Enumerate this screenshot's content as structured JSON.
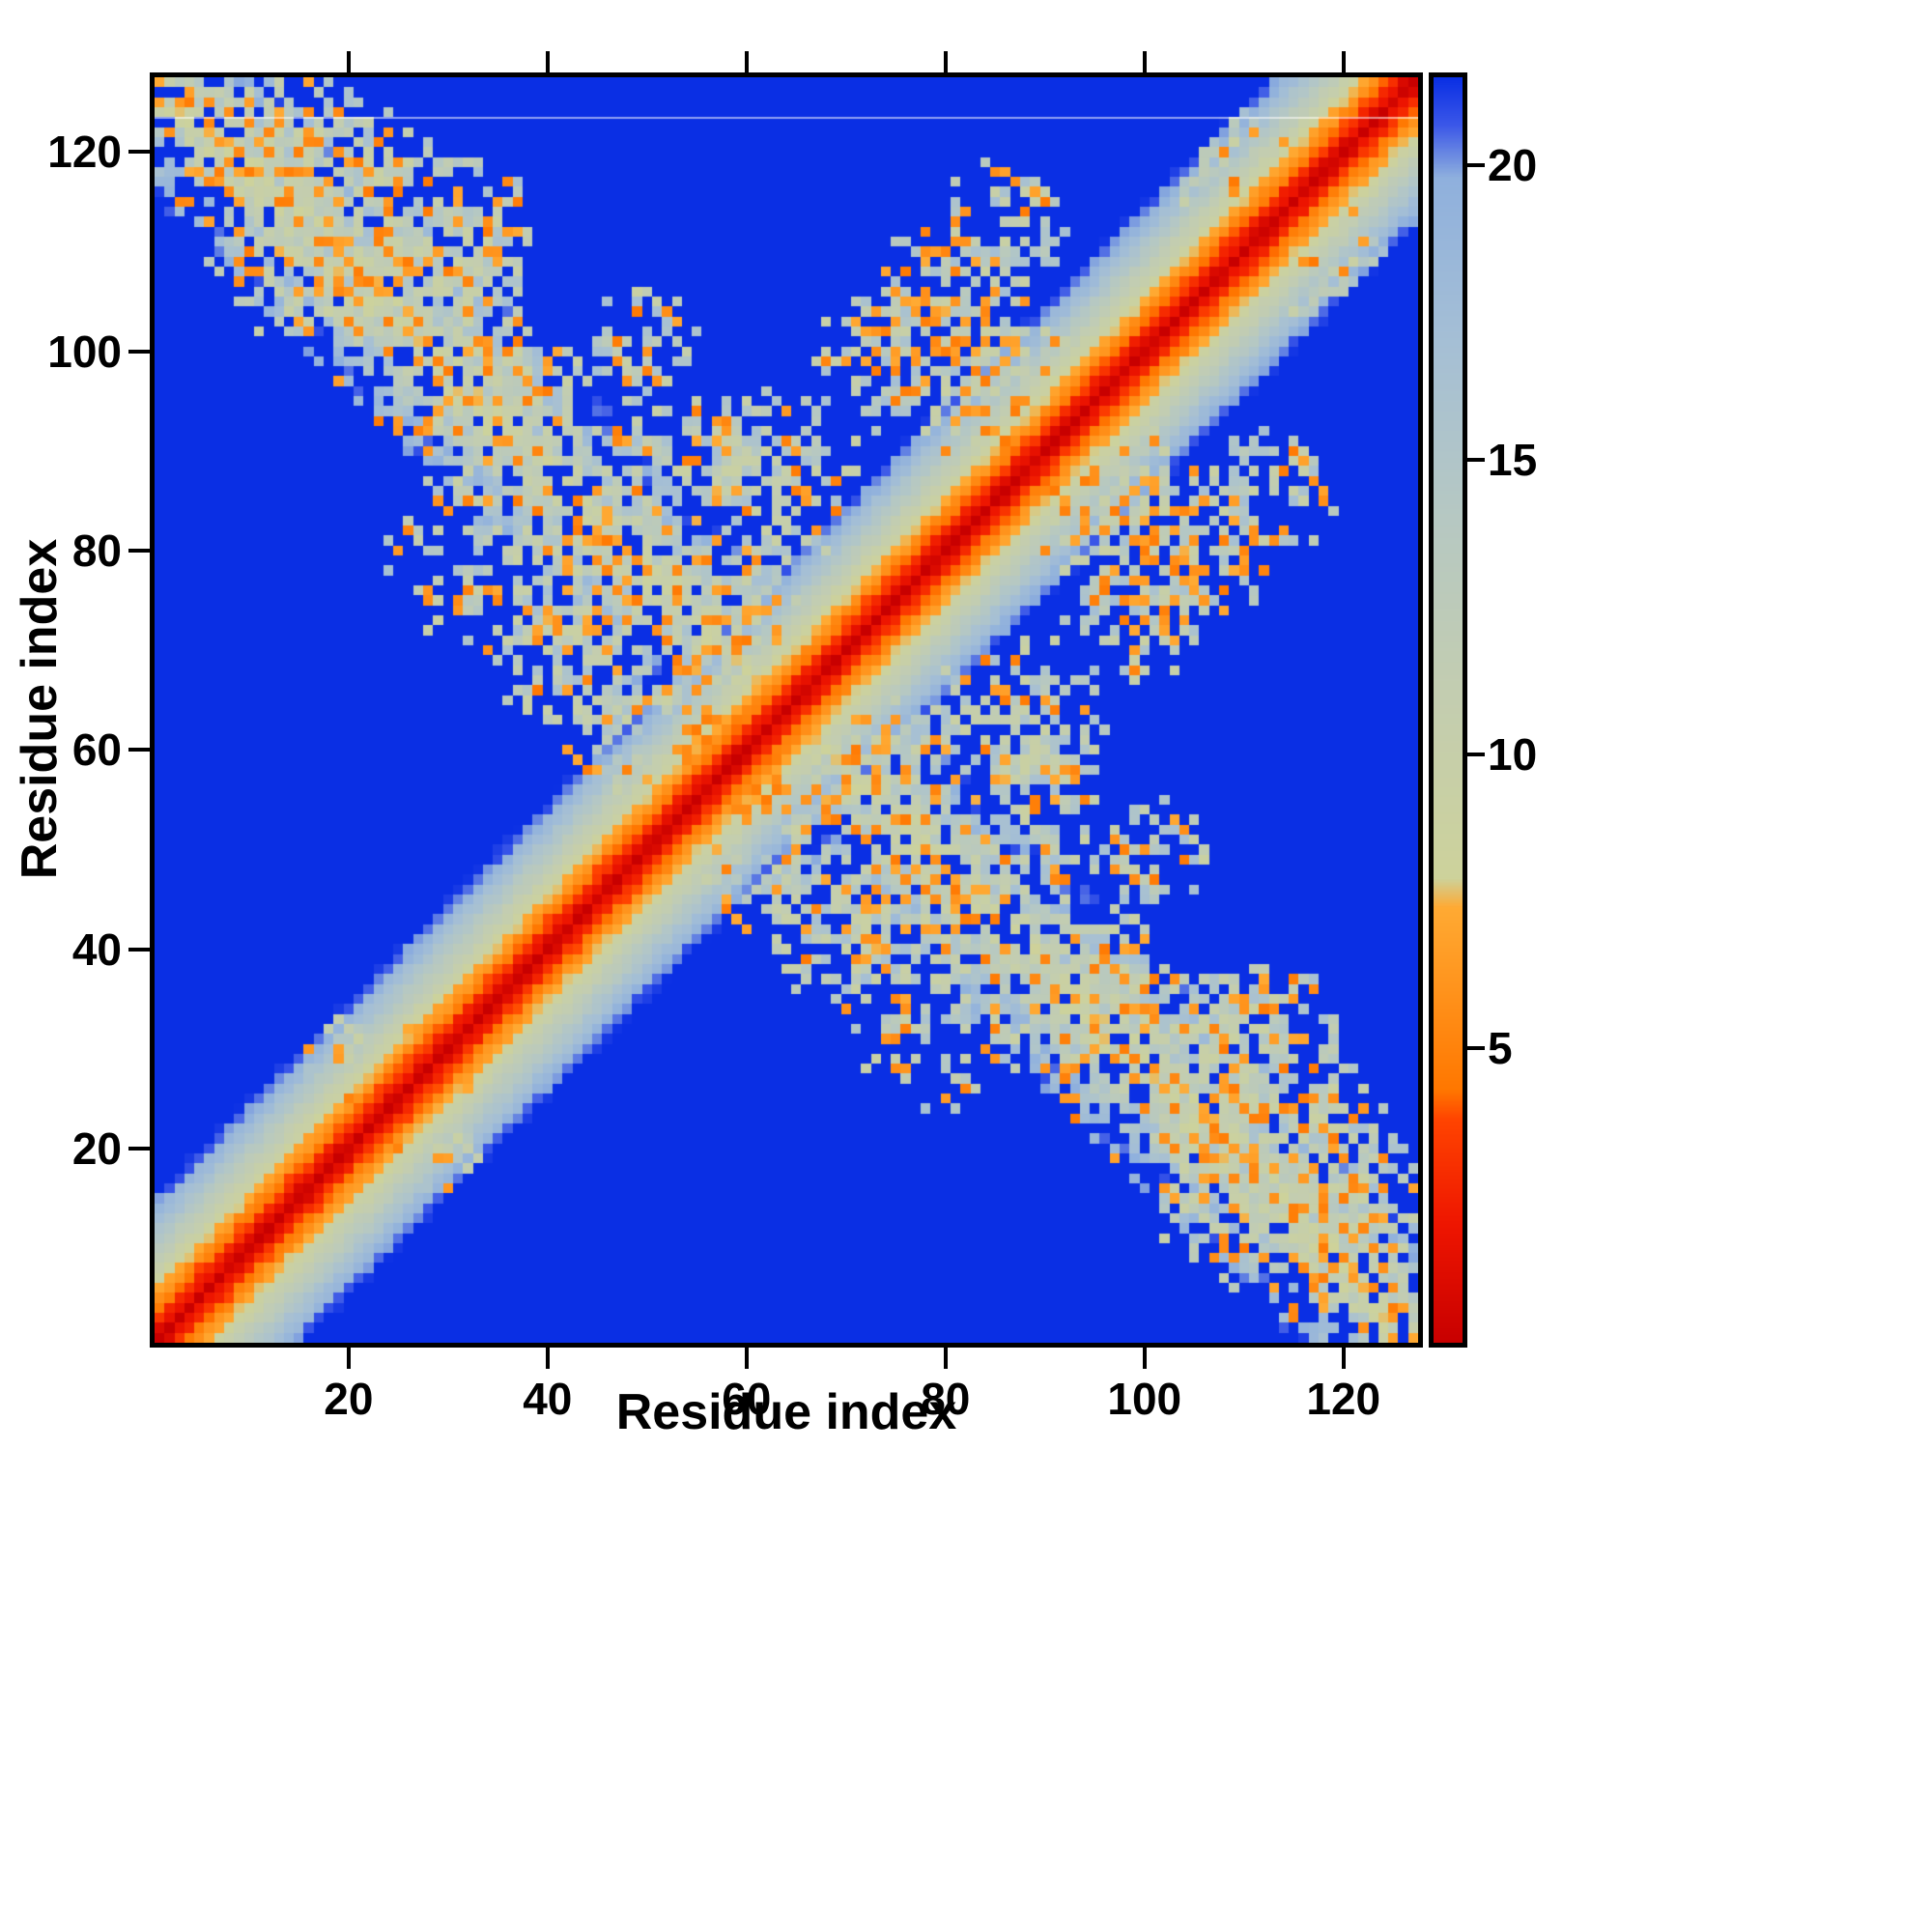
{
  "page": {
    "background": "#ffffff"
  },
  "chart_data": {
    "type": "heatmap",
    "title": "",
    "xlabel": "Residue index",
    "ylabel": "Residue index",
    "axis_range": [
      1,
      127
    ],
    "x_ticks": [
      20,
      40,
      60,
      80,
      100,
      120
    ],
    "y_ticks": [
      20,
      40,
      60,
      80,
      100,
      120
    ],
    "grid": false,
    "legend": "colorbar-right",
    "colorbar": {
      "ticks": [
        5,
        10,
        15,
        20
      ],
      "vmin": 0,
      "vmax": 21.5
    },
    "colormap_stops": [
      [
        0.0,
        "#c80000"
      ],
      [
        2.0,
        "#ee1500"
      ],
      [
        3.8,
        "#ff4400"
      ],
      [
        4.3,
        "#ff7700"
      ],
      [
        7.4,
        "#ffaa33"
      ],
      [
        7.9,
        "#cdd29b"
      ],
      [
        11.0,
        "#c3cdb0"
      ],
      [
        14.0,
        "#b6c8c2"
      ],
      [
        17.0,
        "#a5bfd5"
      ],
      [
        19.8,
        "#8fb0dd"
      ],
      [
        20.7,
        "#3b57e8"
      ],
      [
        21.5,
        "#0a2fe4"
      ]
    ],
    "generation": {
      "seed": 1337,
      "n": 127,
      "diagonal_scale": 1.45,
      "diagonal_wobble": 0.6,
      "anti_band": {
        "width": 12,
        "base": 6.0,
        "slope": 1.0,
        "noise": 6.0,
        "presence": 0.78,
        "orange_frac": 0.1
      },
      "cluster_pale_range": [
        9,
        17
      ],
      "cluster_orange_range": [
        4.5,
        7.5
      ],
      "clusters": [
        [
          18,
          112,
          13,
          0.62,
          0.15
        ],
        [
          10,
          121,
          6,
          0.6,
          0.12
        ],
        [
          30,
          104,
          8,
          0.55,
          0.2
        ],
        [
          38,
          96,
          7,
          0.5,
          0.22
        ],
        [
          33,
          80,
          10,
          0.5,
          0.22
        ],
        [
          41,
          70,
          9,
          0.55,
          0.25
        ],
        [
          48,
          62,
          7,
          0.55,
          0.2
        ],
        [
          52,
          89,
          8,
          0.45,
          0.18
        ],
        [
          63,
          87,
          9,
          0.5,
          0.18
        ],
        [
          60,
          76,
          7,
          0.5,
          0.2
        ],
        [
          75,
          100,
          9,
          0.5,
          0.22
        ],
        [
          84,
          95,
          7,
          0.5,
          0.3
        ],
        [
          86,
          112,
          8,
          0.45,
          0.15
        ],
        [
          105,
          80,
          9,
          0.55,
          0.28
        ],
        [
          95,
          35,
          8,
          0.5,
          0.2
        ],
        [
          112,
          30,
          10,
          0.6,
          0.18
        ],
        [
          120,
          18,
          9,
          0.6,
          0.15
        ],
        [
          22,
          28,
          7,
          0.5,
          0.12
        ],
        [
          56,
          61,
          4,
          0.85,
          0.5
        ],
        [
          77,
          44,
          9,
          0.5,
          0.3
        ],
        [
          98,
          88,
          6,
          0.5,
          0.25
        ],
        [
          110,
          118,
          7,
          0.5,
          0.2
        ],
        [
          70,
          55,
          6,
          0.5,
          0.35
        ],
        [
          90,
          60,
          7,
          0.45,
          0.25
        ],
        [
          100,
          50,
          7,
          0.45,
          0.2
        ]
      ],
      "artifact_line_row": 123
    }
  }
}
